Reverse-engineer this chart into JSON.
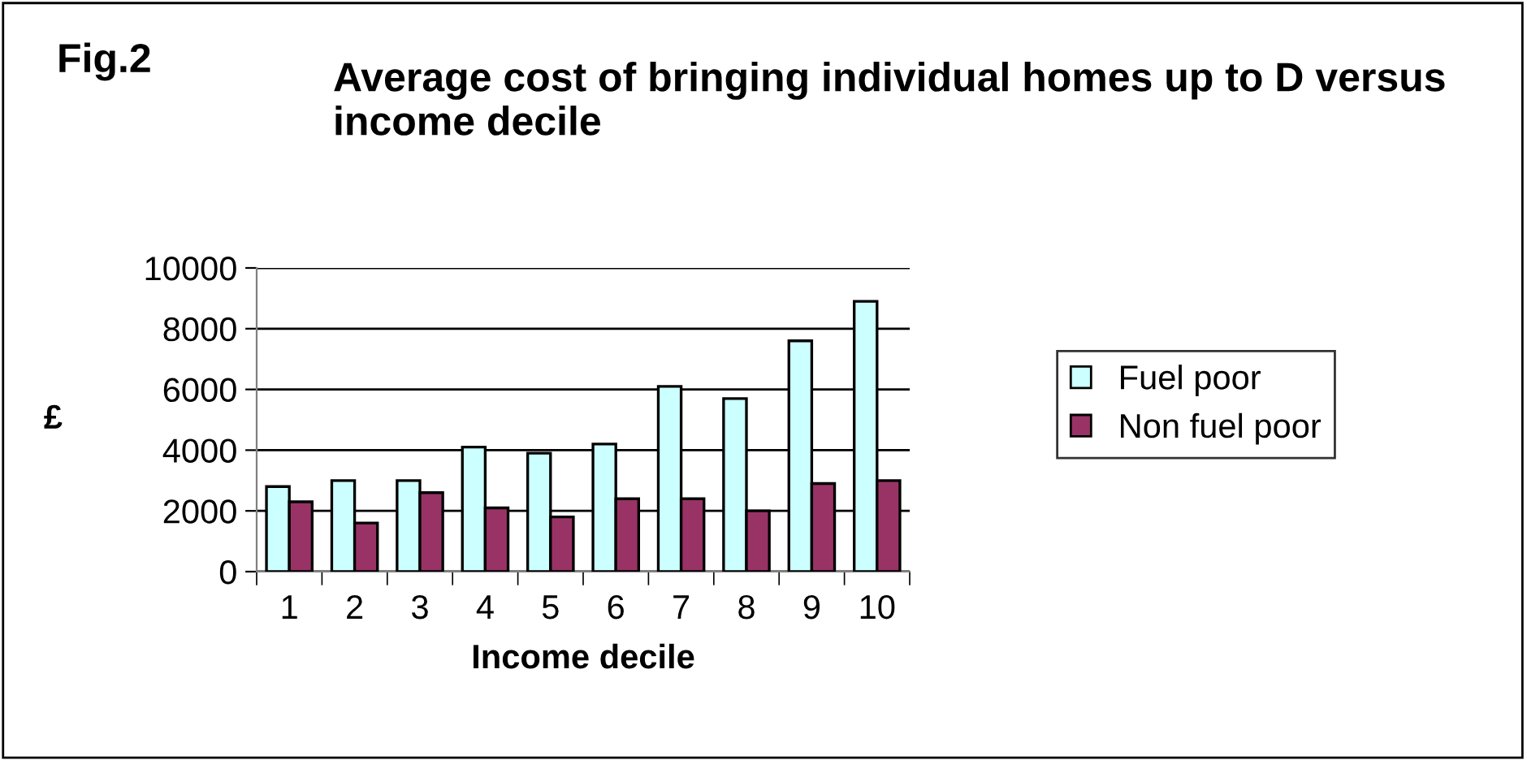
{
  "chart_data": {
    "type": "bar",
    "title": "Fig.2",
    "subtitle": "Average cost of bringing individual homes up to D versus income decile",
    "xlabel": "Income decile",
    "ylabel": "£",
    "categories": [
      "1",
      "2",
      "3",
      "4",
      "5",
      "6",
      "7",
      "8",
      "9",
      "10"
    ],
    "series": [
      {
        "name": "Fuel poor",
        "color": "#ccffff",
        "values": [
          2800,
          3000,
          3000,
          4100,
          3900,
          4200,
          6100,
          5700,
          7600,
          8900
        ]
      },
      {
        "name": "Non fuel poor",
        "color": "#993366",
        "values": [
          2300,
          1600,
          2600,
          2100,
          1800,
          2400,
          2400,
          2000,
          2900,
          3000
        ]
      }
    ],
    "ylim": [
      0,
      10000
    ],
    "yticks": [
      0,
      2000,
      4000,
      6000,
      8000,
      10000
    ],
    "grid": "y",
    "legend": "right"
  }
}
